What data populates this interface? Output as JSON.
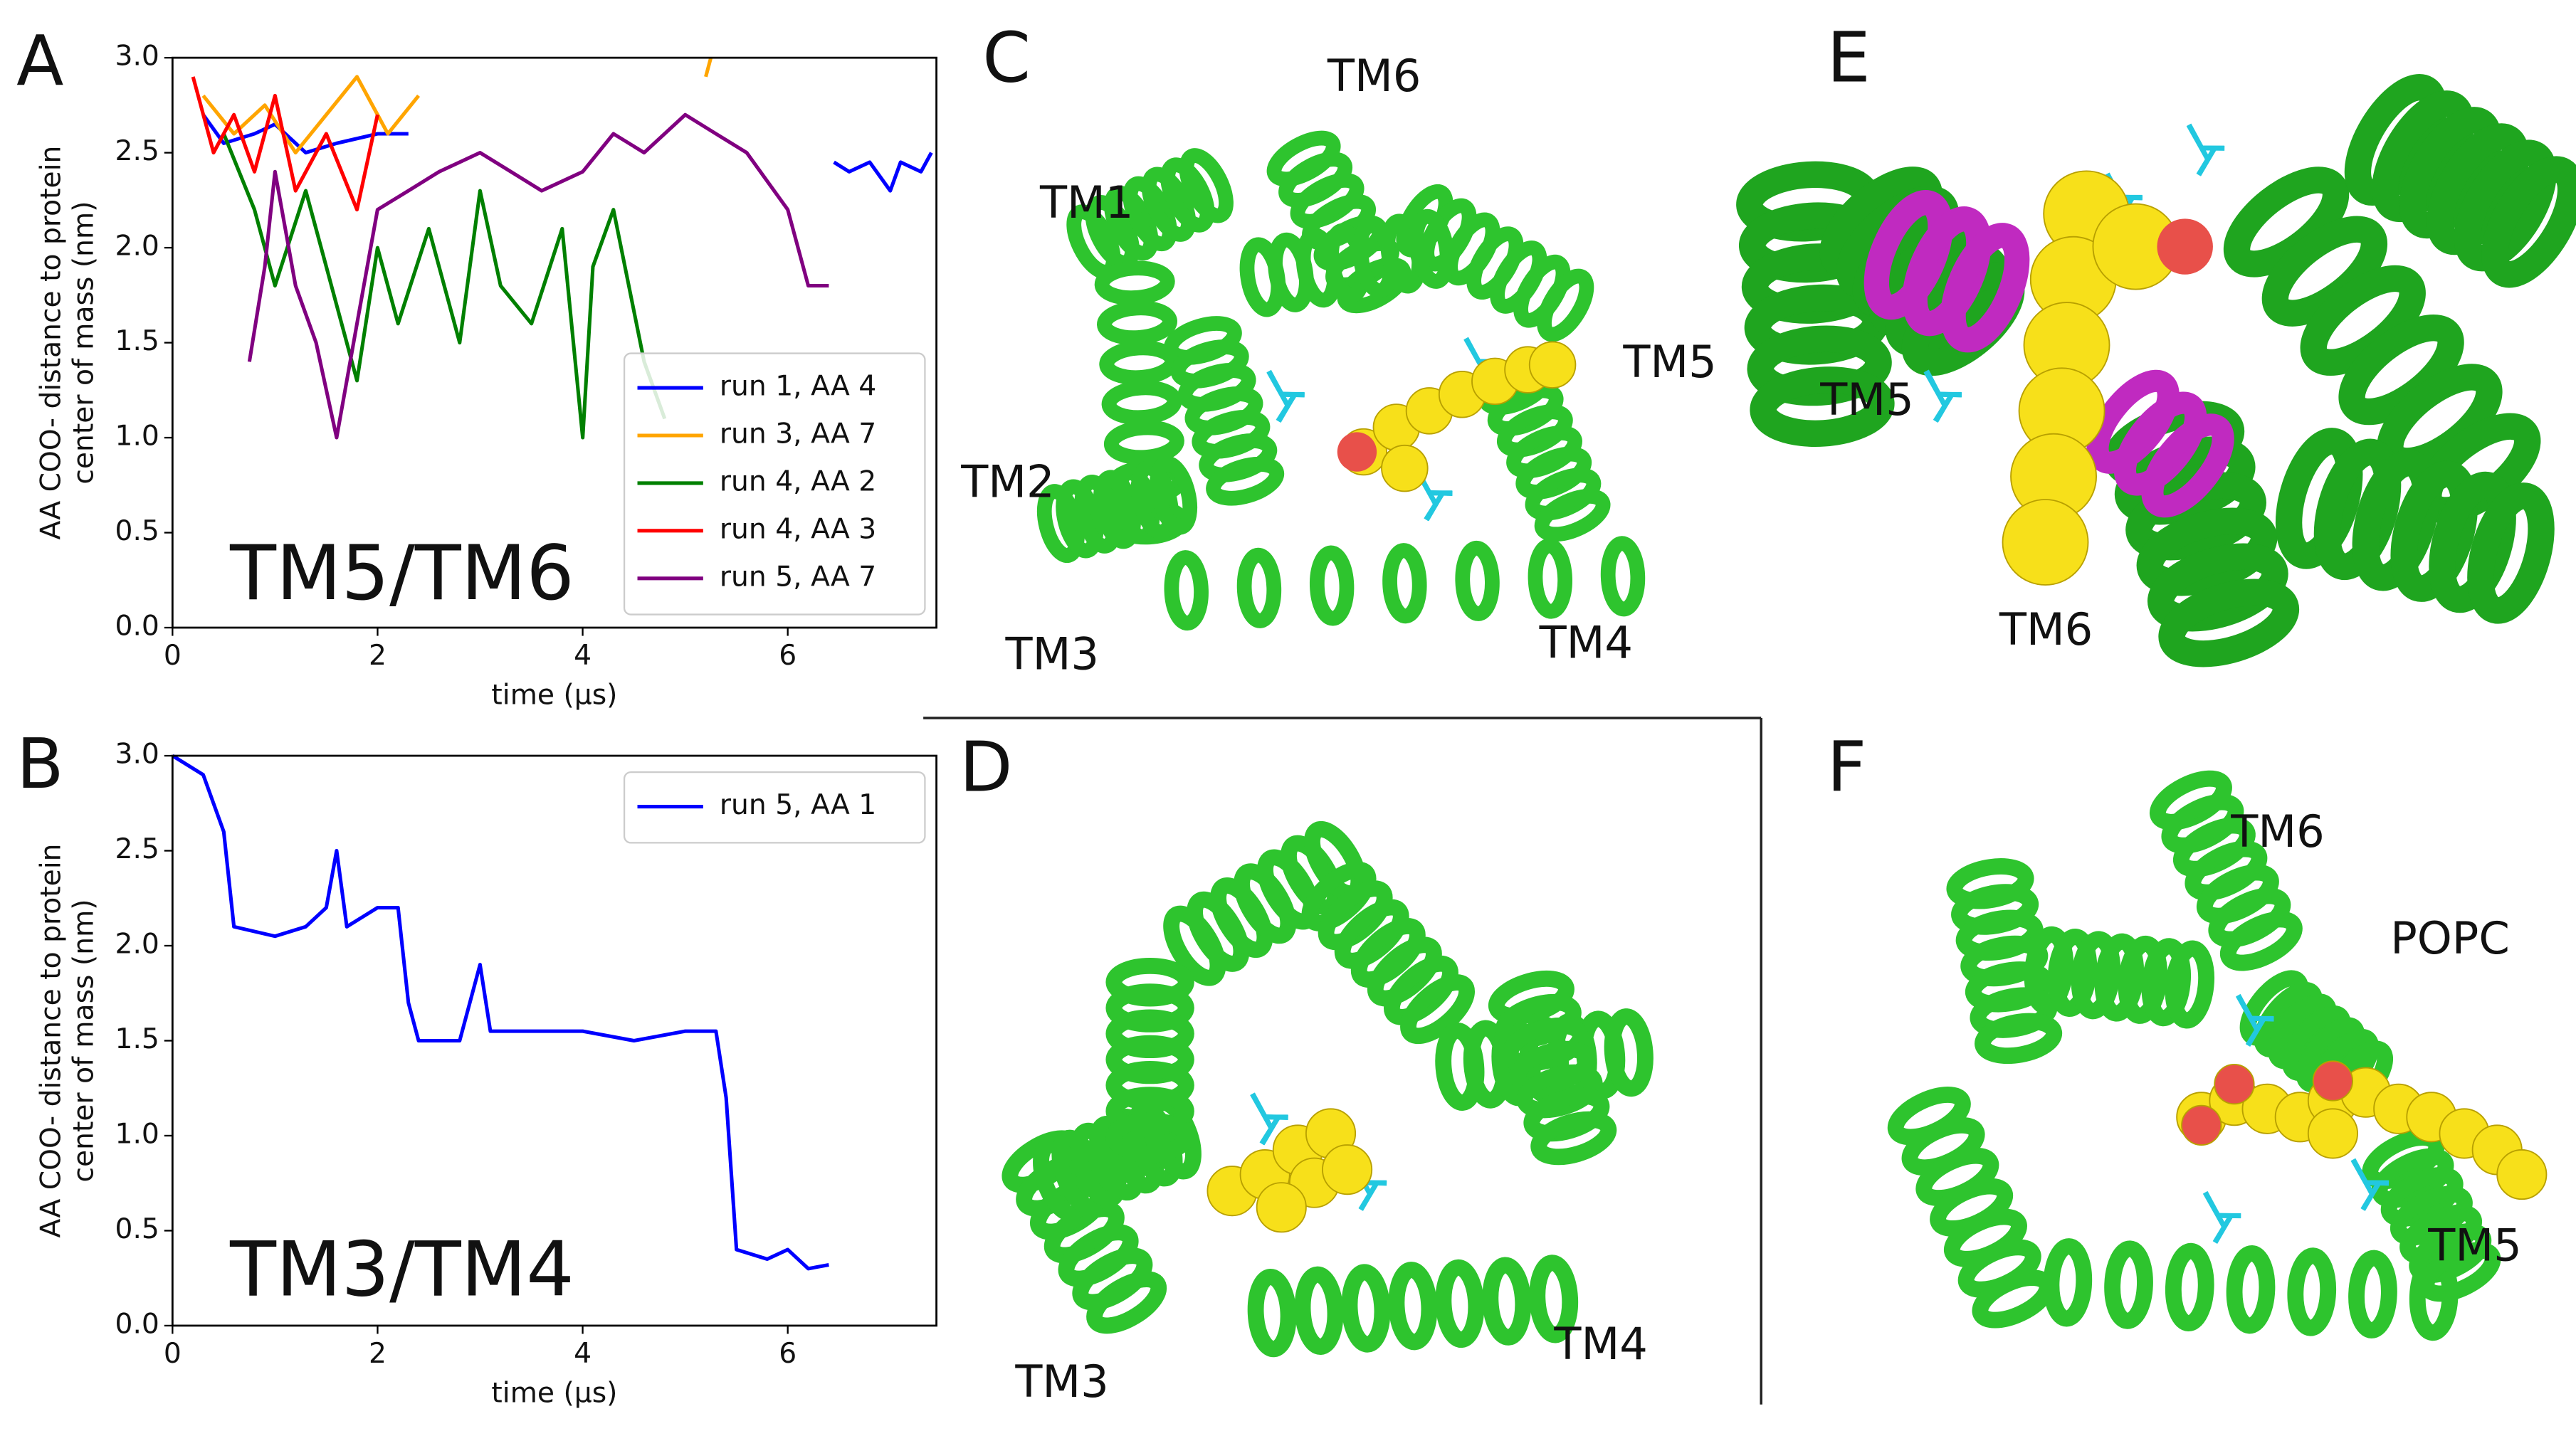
{
  "chart_data": [
    {
      "type": "line",
      "panel_label": "A",
      "annotation": "TM5/TM6",
      "ylabel": [
        "AA COO- distance to protein",
        "center of mass (nm)"
      ],
      "xlabel": "time (μs)",
      "xlim": [
        0,
        7.45
      ],
      "ylim": [
        0,
        3
      ],
      "xticks": [
        0,
        2,
        4,
        6
      ],
      "yticks": [
        {
          "value": 0,
          "label": "0.0"
        },
        0.5,
        {
          "value": 1,
          "label": "1.0"
        },
        1.5,
        {
          "value": 2,
          "label": "2.0"
        },
        2.5,
        {
          "value": 3,
          "label": "3.0"
        }
      ],
      "legend": "lower right",
      "series": [
        {
          "name": "run 1, AA 4",
          "color": "#0000ff",
          "x": [
            0.3,
            0.5,
            0.8,
            1.0,
            1.3,
            1.6,
            2.0,
            2.3,
            2.4,
            6.45,
            6.6,
            6.8,
            7.0,
            7.1,
            7.3,
            7.4
          ],
          "values": [
            2.7,
            2.55,
            2.6,
            2.65,
            2.5,
            2.55,
            2.6,
            2.6,
            null,
            2.45,
            2.4,
            2.45,
            2.3,
            2.45,
            2.4,
            2.5
          ]
        },
        {
          "name": "run 3, AA 7",
          "color": "#ffa500",
          "x": [
            0.3,
            0.6,
            0.9,
            1.2,
            1.5,
            1.8,
            2.1,
            2.4,
            2.5,
            5.2,
            5.25
          ],
          "values": [
            2.8,
            2.6,
            2.75,
            2.5,
            2.7,
            2.9,
            2.6,
            2.8,
            null,
            2.9,
            3.0
          ]
        },
        {
          "name": "run 4, AA 2",
          "color": "#008000",
          "x": [
            0.5,
            0.8,
            1.0,
            1.3,
            1.5,
            1.8,
            2.0,
            2.2,
            2.5,
            2.8,
            3.0,
            3.2,
            3.5,
            3.8,
            4.0,
            4.1,
            4.3,
            4.6,
            4.8
          ],
          "values": [
            2.6,
            2.2,
            1.8,
            2.3,
            1.9,
            1.3,
            2.0,
            1.6,
            2.1,
            1.5,
            2.3,
            1.8,
            1.6,
            2.1,
            1.0,
            1.9,
            2.2,
            1.4,
            1.1
          ]
        },
        {
          "name": "run 4, AA 3",
          "color": "#ff0000",
          "x": [
            0.2,
            0.4,
            0.6,
            0.8,
            1.0,
            1.2,
            1.5,
            1.8,
            2.0
          ],
          "values": [
            2.9,
            2.5,
            2.7,
            2.4,
            2.8,
            2.3,
            2.6,
            2.2,
            2.7
          ]
        },
        {
          "name": "run 5, AA 7",
          "color": "#800080",
          "x": [
            0.75,
            0.9,
            1.0,
            1.2,
            1.4,
            1.6,
            1.8,
            2.0,
            2.3,
            2.6,
            3.0,
            3.3,
            3.6,
            4.0,
            4.3,
            4.6,
            5.0,
            5.3,
            5.6,
            6.0,
            6.2,
            6.4
          ],
          "values": [
            1.4,
            1.9,
            2.4,
            1.8,
            1.5,
            1.0,
            1.6,
            2.2,
            2.3,
            2.4,
            2.5,
            2.4,
            2.3,
            2.4,
            2.6,
            2.5,
            2.7,
            2.6,
            2.5,
            2.2,
            1.8,
            1.8
          ]
        }
      ]
    },
    {
      "type": "line",
      "panel_label": "B",
      "annotation": "TM3/TM4",
      "ylabel": [
        "AA COO- distance to protein",
        "center of mass (nm)"
      ],
      "xlabel": "time (μs)",
      "xlim": [
        0,
        7.45
      ],
      "ylim": [
        0,
        3
      ],
      "xticks": [
        0,
        2,
        4,
        6
      ],
      "yticks": [
        {
          "value": 0,
          "label": "0.0"
        },
        0.5,
        {
          "value": 1,
          "label": "1.0"
        },
        1.5,
        {
          "value": 2,
          "label": "2.0"
        },
        2.5,
        {
          "value": 3,
          "label": "3.0"
        }
      ],
      "legend": "upper right",
      "series": [
        {
          "name": "run 5, AA 1",
          "color": "#0000ff",
          "x": [
            0,
            0.3,
            0.5,
            0.6,
            1.0,
            1.3,
            1.5,
            1.6,
            1.7,
            2.0,
            2.2,
            2.3,
            2.4,
            2.8,
            3.0,
            3.1,
            3.5,
            4.0,
            4.5,
            5.0,
            5.3,
            5.4,
            5.5,
            5.8,
            6.0,
            6.2,
            6.4
          ],
          "values": [
            3.0,
            2.9,
            2.6,
            2.1,
            2.05,
            2.1,
            2.2,
            2.5,
            2.1,
            2.2,
            2.2,
            1.7,
            1.5,
            1.5,
            1.9,
            1.55,
            1.55,
            1.55,
            1.5,
            1.55,
            1.55,
            1.2,
            0.4,
            0.35,
            0.4,
            0.3,
            0.32
          ]
        }
      ]
    }
  ],
  "panels": [
    {
      "letter": "C",
      "labels": [
        "TM6",
        "TM1",
        "TM5",
        "TM2",
        "TM3",
        "TM4"
      ]
    },
    {
      "letter": "D",
      "labels": [
        "TM3",
        "TM4"
      ]
    },
    {
      "letter": "E",
      "labels": [
        "TM5",
        "TM6"
      ]
    },
    {
      "letter": "F",
      "labels": [
        "TM6",
        "POPC",
        "TM5"
      ]
    }
  ]
}
